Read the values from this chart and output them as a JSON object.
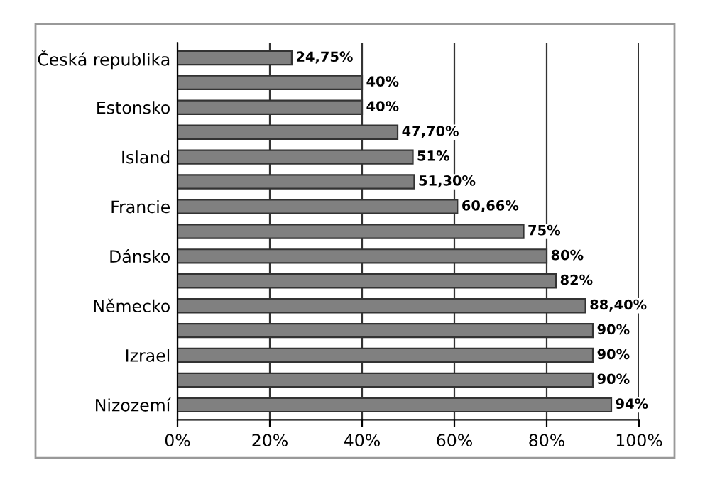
{
  "chart_data": {
    "type": "bar",
    "orientation": "horizontal",
    "categories": [
      "Česká republika",
      null,
      "Estonsko",
      null,
      "Island",
      null,
      "Francie",
      null,
      "Dánsko",
      null,
      "Německo",
      null,
      "Izrael",
      null,
      "Nizozemí"
    ],
    "values": [
      24.75,
      40,
      40,
      47.7,
      51,
      51.3,
      60.66,
      75,
      80,
      82,
      88.4,
      90,
      90,
      90,
      94
    ],
    "value_labels": [
      "24,75%",
      "40%",
      "40%",
      "47,70%",
      "51%",
      "51,30%",
      "60,66%",
      "75%",
      "80%",
      "82%",
      "88,40%",
      "90%",
      "90%",
      "90%",
      "94%"
    ],
    "color": "#808080",
    "xlim": [
      0,
      100
    ],
    "xticks": [
      {
        "value": 0,
        "label": "0%"
      },
      {
        "value": 20,
        "label": "20%"
      },
      {
        "value": 40,
        "label": "40%"
      },
      {
        "value": 60,
        "label": "60%"
      },
      {
        "value": 80,
        "label": "80%"
      },
      {
        "value": 100,
        "label": "100%"
      }
    ],
    "grid": "x",
    "legend": false
  }
}
